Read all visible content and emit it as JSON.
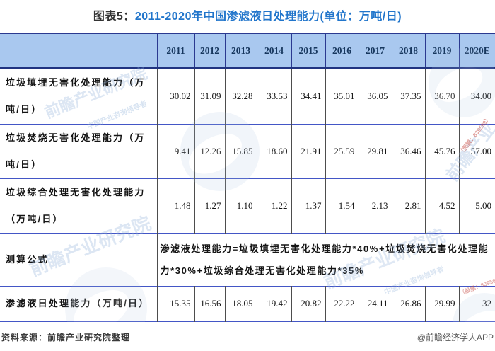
{
  "title": {
    "prefix": "图表5：",
    "main": "2011-2020年中国渗滤液日处理能力(单位：万吨/日)"
  },
  "table": {
    "corner_label": "",
    "years": [
      "2011",
      "2012",
      "2013",
      "2014",
      "2015",
      "2016",
      "2017",
      "2018",
      "2019",
      "2020E"
    ],
    "rows": [
      {
        "type": "data",
        "label": "垃圾填埋无害化处理能力（万吨/日）",
        "values": [
          "30.02",
          "31.09",
          "32.28",
          "33.53",
          "34.41",
          "35.01",
          "36.05",
          "37.35",
          "36.70",
          "34.00"
        ]
      },
      {
        "type": "data",
        "label": "垃圾焚烧无害化处理能力（万吨/日）",
        "values": [
          "9.41",
          "12.26",
          "15.85",
          "18.60",
          "21.91",
          "25.59",
          "29.81",
          "36.46",
          "45.76",
          "57.00"
        ]
      },
      {
        "type": "data",
        "label": "垃圾综合处理无害化处理能力（万吨/日）",
        "values": [
          "1.48",
          "1.27",
          "1.10",
          "1.22",
          "1.37",
          "1.54",
          "2.13",
          "2.81",
          "4.52",
          "5.00"
        ]
      },
      {
        "type": "formula",
        "label": "测算公式",
        "formula": "渗滤液处理能力=垃圾填埋无害化处理能力*40%+垃圾焚烧无害化处理能力*30%+垃圾综合处理无害化处理能力*35%"
      },
      {
        "type": "data",
        "label": "渗滤液日处理能力（万吨/日）",
        "values": [
          "15.35",
          "16.56",
          "18.05",
          "19.42",
          "20.82",
          "22.22",
          "24.11",
          "26.86",
          "29.99",
          "32"
        ]
      }
    ]
  },
  "footer": {
    "source": "资料来源：前瞻产业研究院整理",
    "credit": "@前瞻经济学人APP"
  },
  "watermark": {
    "brand": "前瞻产业研究院",
    "brand_short": "前瞻产业",
    "tagline": "中国产业咨询领导者",
    "stock": "（股票：839599）"
  },
  "colors": {
    "header_bg": "#A9C8EF",
    "header_text": "#17375E",
    "title_accent": "#2175CB",
    "row_divider_blue": "#4356C6",
    "header_border_navy": "#2B3990",
    "cell_border_gray": "#4D4D4D",
    "watermark_blue": "#8FB0D9"
  },
  "chart_data": {
    "type": "table",
    "title": "图表5：2011-2020年中国渗滤液日处理能力(单位：万吨/日)",
    "categories": [
      "2011",
      "2012",
      "2013",
      "2014",
      "2015",
      "2016",
      "2017",
      "2018",
      "2019",
      "2020E"
    ],
    "series": [
      {
        "name": "垃圾填埋无害化处理能力（万吨/日）",
        "values": [
          30.02,
          31.09,
          32.28,
          33.53,
          34.41,
          35.01,
          36.05,
          37.35,
          36.7,
          34.0
        ]
      },
      {
        "name": "垃圾焚烧无害化处理能力（万吨/日）",
        "values": [
          9.41,
          12.26,
          15.85,
          18.6,
          21.91,
          25.59,
          29.81,
          36.46,
          45.76,
          57.0
        ]
      },
      {
        "name": "垃圾综合处理无害化处理能力（万吨/日）",
        "values": [
          1.48,
          1.27,
          1.1,
          1.22,
          1.37,
          1.54,
          2.13,
          2.81,
          4.52,
          5.0
        ]
      },
      {
        "name": "渗滤液日处理能力（万吨/日）",
        "values": [
          15.35,
          16.56,
          18.05,
          19.42,
          20.82,
          22.22,
          24.11,
          26.86,
          29.99,
          32
        ]
      }
    ],
    "formula_row": {
      "label": "测算公式",
      "text": "渗滤液处理能力=垃圾填埋无害化处理能力*40%+垃圾焚烧无害化处理能力*30%+垃圾综合处理无害化处理能力*35%"
    },
    "source": "资料来源：前瞻产业研究院整理",
    "unit": "万吨/日"
  }
}
